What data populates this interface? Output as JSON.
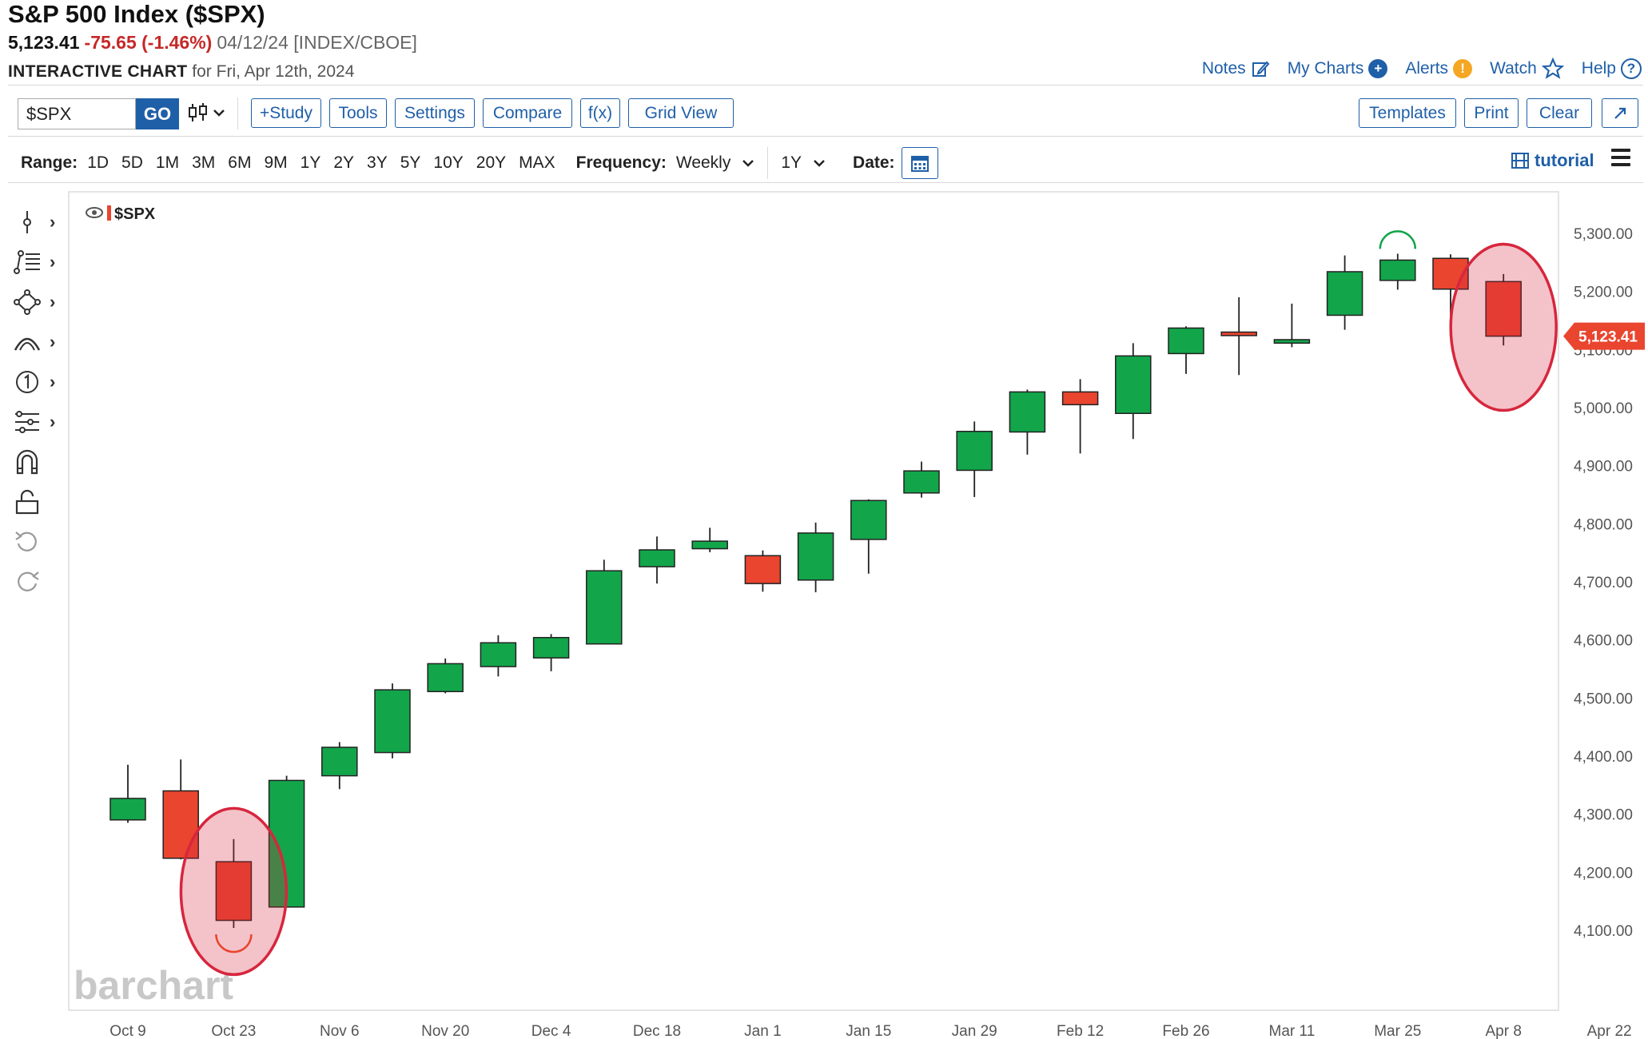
{
  "header": {
    "title": "S&P 500 Index ($SPX)",
    "last": "5,123.41",
    "change": "-75.65 (-1.46%)",
    "meta": "04/12/24 [INDEX/CBOE]",
    "interactive_label": "INTERACTIVE CHART",
    "interactive_date": "for Fri, Apr 12th, 2024"
  },
  "toplinks": {
    "notes": "Notes",
    "my_charts": "My Charts",
    "alerts": "Alerts",
    "watch": "Watch",
    "help": "Help"
  },
  "toolbar": {
    "symbol_value": "$SPX",
    "go_label": "GO",
    "study": "+Study",
    "tools": "Tools",
    "settings": "Settings",
    "compare": "Compare",
    "fx": "f(x)",
    "grid_view": "Grid View",
    "templates": "Templates",
    "print": "Print",
    "clear": "Clear"
  },
  "rangebar": {
    "range_label": "Range:",
    "ranges": [
      "1D",
      "5D",
      "1M",
      "3M",
      "6M",
      "9M",
      "1Y",
      "2Y",
      "3Y",
      "5Y",
      "10Y",
      "20Y",
      "MAX"
    ],
    "frequency_label": "Frequency:",
    "frequency_value": "Weekly",
    "period_value": "1Y",
    "date_label": "Date:",
    "tutorial": "tutorial"
  },
  "chart_data": {
    "type": "candlestick",
    "symbol_label": "$SPX",
    "last_price_label": "5,123.41",
    "watermark": "barchart",
    "yticks": [
      4100,
      4200,
      4300,
      4400,
      4500,
      4600,
      4700,
      4800,
      4900,
      5000,
      5100,
      5200,
      5300
    ],
    "ytick_labels": [
      "4,100.00",
      "4,200.00",
      "4,300.00",
      "4,400.00",
      "4,500.00",
      "4,600.00",
      "4,700.00",
      "4,800.00",
      "4,900.00",
      "5,000.00",
      "5,100.00",
      "5,200.00",
      "5,300.00"
    ],
    "xtick_labels": [
      "Oct 9",
      "Oct 23",
      "Nov 6",
      "Nov 20",
      "Dec 4",
      "Dec 18",
      "Jan 1",
      "Jan 15",
      "Jan 29",
      "Feb 12",
      "Feb 26",
      "Mar 11",
      "Mar 25",
      "Apr 8",
      "Apr 22"
    ],
    "candles": [
      {
        "week": "Oct 9",
        "open": 4290,
        "high": 4385,
        "low": 4285,
        "close": 4327
      },
      {
        "week": "Oct 16",
        "open": 4340,
        "high": 4394,
        "low": 4222,
        "close": 4224
      },
      {
        "week": "Oct 23",
        "open": 4218,
        "high": 4257,
        "low": 4104,
        "close": 4117
      },
      {
        "week": "Oct 30",
        "open": 4140,
        "high": 4366,
        "low": 4140,
        "close": 4358
      },
      {
        "week": "Nov 6",
        "open": 4366,
        "high": 4424,
        "low": 4343,
        "close": 4415
      },
      {
        "week": "Nov 13",
        "open": 4406,
        "high": 4525,
        "low": 4396,
        "close": 4514
      },
      {
        "week": "Nov 20",
        "open": 4511,
        "high": 4568,
        "low": 4508,
        "close": 4559
      },
      {
        "week": "Nov 27",
        "open": 4554,
        "high": 4608,
        "low": 4537,
        "close": 4595
      },
      {
        "week": "Dec 4",
        "open": 4569,
        "high": 4610,
        "low": 4546,
        "close": 4604
      },
      {
        "week": "Dec 11",
        "open": 4593,
        "high": 4738,
        "low": 4593,
        "close": 4719
      },
      {
        "week": "Dec 18",
        "open": 4726,
        "high": 4778,
        "low": 4697,
        "close": 4755
      },
      {
        "week": "Dec 25",
        "open": 4757,
        "high": 4793,
        "low": 4751,
        "close": 4770
      },
      {
        "week": "Jan 1",
        "open": 4745,
        "high": 4754,
        "low": 4683,
        "close": 4697
      },
      {
        "week": "Jan 8",
        "open": 4703,
        "high": 4802,
        "low": 4682,
        "close": 4784
      },
      {
        "week": "Jan 15",
        "open": 4773,
        "high": 4842,
        "low": 4714,
        "close": 4840
      },
      {
        "week": "Jan 22",
        "open": 4853,
        "high": 4907,
        "low": 4845,
        "close": 4891
      },
      {
        "week": "Jan 29",
        "open": 4892,
        "high": 4976,
        "low": 4846,
        "close": 4959
      },
      {
        "week": "Feb 5",
        "open": 4958,
        "high": 5031,
        "low": 4919,
        "close": 5027
      },
      {
        "week": "Feb 12",
        "open": 5027,
        "high": 5049,
        "low": 4921,
        "close": 5005
      },
      {
        "week": "Feb 19",
        "open": 4990,
        "high": 5111,
        "low": 4946,
        "close": 5089
      },
      {
        "week": "Feb 26",
        "open": 5093,
        "high": 5140,
        "low": 5058,
        "close": 5137
      },
      {
        "week": "Mar 4",
        "open": 5130,
        "high": 5190,
        "low": 5056,
        "close": 5124
      },
      {
        "week": "Mar 11",
        "open": 5111,
        "high": 5179,
        "low": 5104,
        "close": 5117
      },
      {
        "week": "Mar 18",
        "open": 5159,
        "high": 5262,
        "low": 5134,
        "close": 5234
      },
      {
        "week": "Mar 25",
        "open": 5219,
        "high": 5265,
        "low": 5203,
        "close": 5254
      },
      {
        "week": "Apr 1",
        "open": 5257,
        "high": 5264,
        "low": 5146,
        "close": 5204
      },
      {
        "week": "Apr 8",
        "open": 5217,
        "high": 5230,
        "low": 5107,
        "close": 5123
      }
    ],
    "colors": {
      "up": "#12a54a",
      "down": "#e9452f",
      "highlight": "#d7263d"
    }
  }
}
